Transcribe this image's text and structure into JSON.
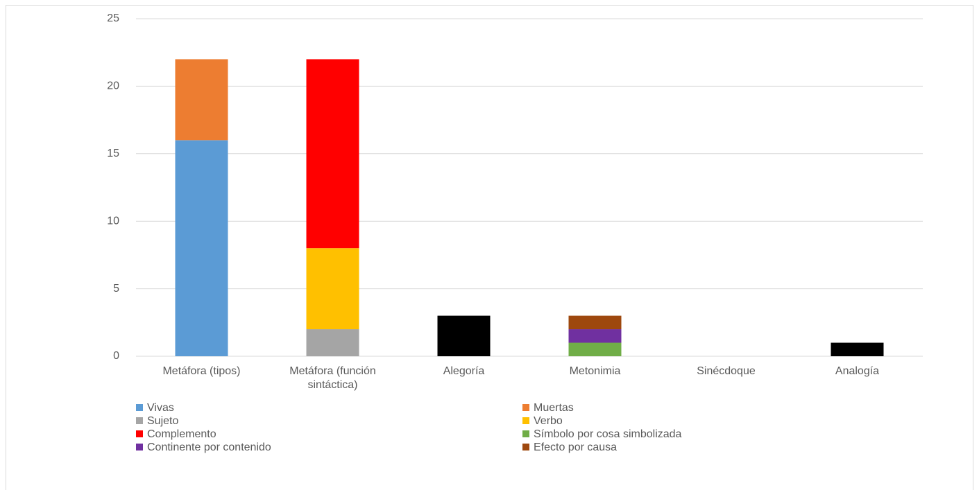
{
  "chart_data": {
    "type": "stacked_bar",
    "categories": [
      "Metáfora (tipos)",
      "Metáfora (función sintáctica)",
      "Alegoría",
      "Metonimia",
      "Sinécdoque",
      "Analogía"
    ],
    "series": [
      {
        "name": "Vivas",
        "color": "#5b9bd5",
        "values": [
          16,
          null,
          null,
          null,
          null,
          null
        ]
      },
      {
        "name": "Muertas",
        "color": "#ed7d31",
        "values": [
          6,
          null,
          null,
          null,
          null,
          null
        ]
      },
      {
        "name": "Sujeto",
        "color": "#a5a5a5",
        "values": [
          null,
          2,
          null,
          null,
          null,
          null
        ]
      },
      {
        "name": "Verbo",
        "color": "#ffc000",
        "values": [
          null,
          6,
          null,
          null,
          null,
          null
        ]
      },
      {
        "name": "Complemento",
        "color": "#ff0000",
        "values": [
          null,
          14,
          null,
          null,
          null,
          null
        ]
      },
      {
        "name": "Símbolo por cosa simbolizada",
        "color": "#70ad47",
        "values": [
          null,
          null,
          null,
          1,
          null,
          null
        ]
      },
      {
        "name": "Continente por contenido",
        "color": "#7030a0",
        "values": [
          null,
          null,
          null,
          1,
          null,
          null
        ]
      },
      {
        "name": "Efecto por causa",
        "color": "#9e480e",
        "values": [
          null,
          null,
          null,
          1,
          null,
          null
        ]
      },
      {
        "color": "#000000",
        "values": [
          null,
          null,
          3,
          null,
          null,
          1
        ]
      }
    ],
    "ylim": [
      0,
      25
    ],
    "yticks": [
      0,
      5,
      10,
      15,
      20,
      25
    ],
    "grid": true,
    "legend": "bottom"
  }
}
